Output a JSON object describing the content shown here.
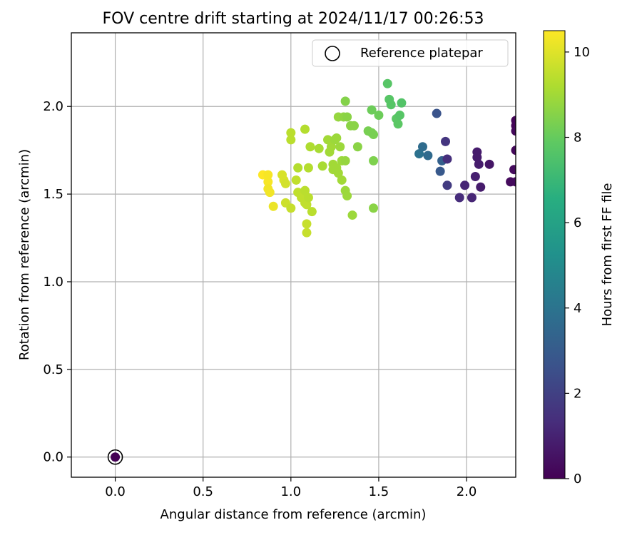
{
  "chart_data": {
    "type": "scatter",
    "title": "FOV centre drift starting at 2024/11/17 00:26:53",
    "xlabel": "Angular distance from reference (arcmin)",
    "ylabel": "Rotation from reference (arcmin)",
    "xlim": [
      -0.25,
      2.28
    ],
    "ylim": [
      -0.115,
      2.42
    ],
    "xticks": [
      0.0,
      0.5,
      1.0,
      1.5,
      2.0
    ],
    "xtick_labels": [
      "0.0",
      "0.5",
      "1.0",
      "1.5",
      "2.0"
    ],
    "yticks": [
      0.0,
      0.5,
      1.0,
      1.5,
      2.0
    ],
    "ytick_labels": [
      "0.0",
      "0.5",
      "1.0",
      "1.5",
      "2.0"
    ],
    "grid": true,
    "legend": {
      "position": "top-right",
      "entries": [
        "Reference platepar"
      ]
    },
    "colormap": "viridis",
    "colorbar": {
      "label": "Hours from first FF file",
      "range": [
        0,
        10.5
      ],
      "ticks": [
        0,
        2,
        4,
        6,
        8,
        10
      ],
      "tick_labels": [
        "0",
        "2",
        "4",
        "6",
        "8",
        "10"
      ]
    },
    "reference_point": {
      "x": 0.0,
      "y": 0.0,
      "hours": 0.0
    },
    "points": [
      {
        "x": 0.84,
        "y": 1.61,
        "hours": 10.5
      },
      {
        "x": 0.87,
        "y": 1.61,
        "hours": 10.4
      },
      {
        "x": 0.87,
        "y": 1.57,
        "hours": 10.4
      },
      {
        "x": 0.87,
        "y": 1.53,
        "hours": 10.3
      },
      {
        "x": 0.88,
        "y": 1.51,
        "hours": 10.3
      },
      {
        "x": 0.9,
        "y": 1.43,
        "hours": 10.2
      },
      {
        "x": 0.95,
        "y": 1.61,
        "hours": 9.9
      },
      {
        "x": 0.96,
        "y": 1.58,
        "hours": 9.9
      },
      {
        "x": 0.97,
        "y": 1.56,
        "hours": 9.8
      },
      {
        "x": 0.97,
        "y": 1.45,
        "hours": 9.7
      },
      {
        "x": 1.0,
        "y": 1.42,
        "hours": 9.6
      },
      {
        "x": 1.0,
        "y": 1.85,
        "hours": 9.4
      },
      {
        "x": 1.0,
        "y": 1.81,
        "hours": 9.4
      },
      {
        "x": 1.03,
        "y": 1.58,
        "hours": 9.5
      },
      {
        "x": 1.04,
        "y": 1.65,
        "hours": 9.3
      },
      {
        "x": 1.04,
        "y": 1.51,
        "hours": 9.5
      },
      {
        "x": 1.06,
        "y": 1.48,
        "hours": 9.5
      },
      {
        "x": 1.07,
        "y": 1.5,
        "hours": 9.5
      },
      {
        "x": 1.08,
        "y": 1.52,
        "hours": 9.4
      },
      {
        "x": 1.08,
        "y": 1.45,
        "hours": 9.5
      },
      {
        "x": 1.09,
        "y": 1.44,
        "hours": 9.5
      },
      {
        "x": 1.1,
        "y": 1.48,
        "hours": 9.4
      },
      {
        "x": 1.08,
        "y": 1.87,
        "hours": 9.3
      },
      {
        "x": 1.09,
        "y": 1.33,
        "hours": 9.6
      },
      {
        "x": 1.09,
        "y": 1.28,
        "hours": 9.6
      },
      {
        "x": 1.1,
        "y": 1.65,
        "hours": 9.3
      },
      {
        "x": 1.11,
        "y": 1.77,
        "hours": 9.2
      },
      {
        "x": 1.12,
        "y": 1.4,
        "hours": 9.4
      },
      {
        "x": 1.16,
        "y": 1.76,
        "hours": 9.1
      },
      {
        "x": 1.18,
        "y": 1.66,
        "hours": 9.1
      },
      {
        "x": 1.21,
        "y": 1.81,
        "hours": 9.0
      },
      {
        "x": 1.22,
        "y": 1.74,
        "hours": 9.0
      },
      {
        "x": 1.23,
        "y": 1.77,
        "hours": 9.0
      },
      {
        "x": 1.24,
        "y": 1.67,
        "hours": 9.0
      },
      {
        "x": 1.24,
        "y": 1.64,
        "hours": 9.0
      },
      {
        "x": 1.25,
        "y": 1.81,
        "hours": 8.9
      },
      {
        "x": 1.26,
        "y": 1.82,
        "hours": 8.9
      },
      {
        "x": 1.26,
        "y": 1.65,
        "hours": 9.0
      },
      {
        "x": 1.27,
        "y": 1.62,
        "hours": 9.0
      },
      {
        "x": 1.27,
        "y": 1.94,
        "hours": 8.8
      },
      {
        "x": 1.28,
        "y": 1.77,
        "hours": 8.9
      },
      {
        "x": 1.29,
        "y": 1.69,
        "hours": 8.9
      },
      {
        "x": 1.29,
        "y": 1.58,
        "hours": 9.0
      },
      {
        "x": 1.3,
        "y": 1.94,
        "hours": 8.7
      },
      {
        "x": 1.31,
        "y": 1.69,
        "hours": 8.8
      },
      {
        "x": 1.31,
        "y": 2.03,
        "hours": 8.5
      },
      {
        "x": 1.32,
        "y": 1.94,
        "hours": 8.6
      },
      {
        "x": 1.31,
        "y": 1.52,
        "hours": 8.9
      },
      {
        "x": 1.32,
        "y": 1.49,
        "hours": 8.9
      },
      {
        "x": 1.34,
        "y": 1.89,
        "hours": 8.6
      },
      {
        "x": 1.36,
        "y": 1.89,
        "hours": 8.6
      },
      {
        "x": 1.35,
        "y": 1.38,
        "hours": 8.9
      },
      {
        "x": 1.38,
        "y": 1.77,
        "hours": 8.6
      },
      {
        "x": 1.44,
        "y": 1.86,
        "hours": 8.3
      },
      {
        "x": 1.46,
        "y": 1.85,
        "hours": 8.3
      },
      {
        "x": 1.46,
        "y": 1.98,
        "hours": 8.1
      },
      {
        "x": 1.47,
        "y": 1.84,
        "hours": 8.3
      },
      {
        "x": 1.47,
        "y": 1.69,
        "hours": 8.4
      },
      {
        "x": 1.47,
        "y": 1.42,
        "hours": 8.6
      },
      {
        "x": 1.5,
        "y": 1.95,
        "hours": 8.1
      },
      {
        "x": 1.55,
        "y": 2.13,
        "hours": 7.7
      },
      {
        "x": 1.56,
        "y": 2.04,
        "hours": 7.7
      },
      {
        "x": 1.57,
        "y": 2.01,
        "hours": 7.7
      },
      {
        "x": 1.6,
        "y": 1.93,
        "hours": 7.8
      },
      {
        "x": 1.61,
        "y": 1.9,
        "hours": 7.8
      },
      {
        "x": 1.62,
        "y": 1.95,
        "hours": 7.7
      },
      {
        "x": 1.63,
        "y": 2.02,
        "hours": 7.6
      },
      {
        "x": 1.73,
        "y": 1.73,
        "hours": 3.9
      },
      {
        "x": 1.75,
        "y": 1.77,
        "hours": 3.7
      },
      {
        "x": 1.78,
        "y": 1.72,
        "hours": 3.6
      },
      {
        "x": 1.83,
        "y": 1.96,
        "hours": 2.7
      },
      {
        "x": 1.85,
        "y": 1.63,
        "hours": 2.9
      },
      {
        "x": 1.86,
        "y": 1.69,
        "hours": 3.2
      },
      {
        "x": 1.88,
        "y": 1.8,
        "hours": 1.6
      },
      {
        "x": 1.89,
        "y": 1.7,
        "hours": 1.4
      },
      {
        "x": 1.89,
        "y": 1.55,
        "hours": 1.8
      },
      {
        "x": 1.96,
        "y": 1.48,
        "hours": 1.3
      },
      {
        "x": 1.99,
        "y": 1.55,
        "hours": 1.1
      },
      {
        "x": 2.03,
        "y": 1.48,
        "hours": 1.1
      },
      {
        "x": 2.05,
        "y": 1.6,
        "hours": 0.9
      },
      {
        "x": 2.06,
        "y": 1.74,
        "hours": 0.8
      },
      {
        "x": 2.06,
        "y": 1.71,
        "hours": 0.8
      },
      {
        "x": 2.07,
        "y": 1.67,
        "hours": 0.8
      },
      {
        "x": 2.08,
        "y": 1.54,
        "hours": 0.8
      },
      {
        "x": 2.13,
        "y": 1.67,
        "hours": 0.6
      },
      {
        "x": 2.25,
        "y": 1.57,
        "hours": 0.3
      },
      {
        "x": 2.27,
        "y": 1.64,
        "hours": 0.3
      },
      {
        "x": 2.28,
        "y": 1.57,
        "hours": 0.3
      },
      {
        "x": 2.28,
        "y": 1.92,
        "hours": 0.1
      },
      {
        "x": 2.28,
        "y": 1.89,
        "hours": 0.1
      },
      {
        "x": 2.28,
        "y": 1.86,
        "hours": 0.2
      },
      {
        "x": 2.28,
        "y": 1.75,
        "hours": 0.2
      }
    ]
  }
}
